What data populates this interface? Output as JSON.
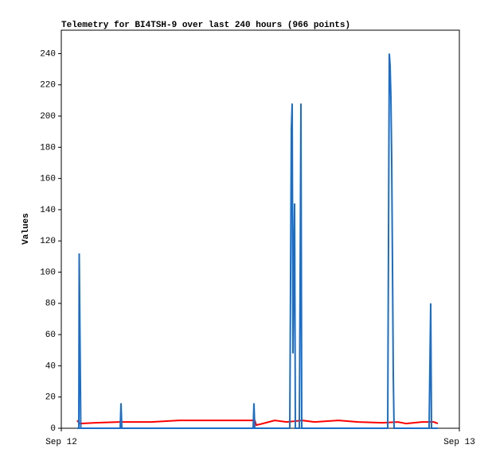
{
  "chart_data": {
    "type": "line",
    "title": "Telemetry for BI4TSH-9 over last 240 hours (966 points)",
    "ylabel": "Values",
    "xlim": [
      0,
      1
    ],
    "xticks": [
      {
        "value": 0,
        "label": "Sep 12"
      },
      {
        "value": 1,
        "label": "Sep 13"
      }
    ],
    "ylim": [
      0,
      255
    ],
    "yticks": [
      0,
      20,
      40,
      60,
      80,
      100,
      120,
      140,
      160,
      180,
      200,
      220,
      240
    ],
    "series": [
      {
        "color": "#ff0000",
        "x": [
          0.04,
          0.046,
          0.086,
          0.146,
          0.226,
          0.296,
          0.416,
          0.486,
          0.49,
          0.506,
          0.536,
          0.566,
          0.606,
          0.636,
          0.696,
          0.746,
          0.806,
          0.846,
          0.866,
          0.906,
          0.936,
          0.946
        ],
        "values": [
          5,
          3,
          3.5,
          4,
          4,
          5,
          5,
          5,
          2,
          3,
          5,
          4,
          5,
          4,
          5,
          4,
          3.5,
          4,
          3,
          4,
          4,
          3
        ]
      },
      {
        "color": "#1a6ec8",
        "x": [
          0.04,
          0.044,
          0.045,
          0.046,
          0.048,
          0.049,
          0.148,
          0.15,
          0.152,
          0.482,
          0.484,
          0.486,
          0.574,
          0.576,
          0.578,
          0.58,
          0.582,
          0.584,
          0.586,
          0.588,
          0.598,
          0.6,
          0.602,
          0.604,
          0.82,
          0.822,
          0.824,
          0.826,
          0.828,
          0.83,
          0.832,
          0.834,
          0.836,
          0.924,
          0.926,
          0.928,
          0.93,
          0.946
        ],
        "values": [
          0,
          0,
          112,
          84,
          28,
          0,
          0,
          16,
          0,
          0,
          16,
          0,
          0,
          96,
          192,
          208,
          48,
          104,
          144,
          0,
          0,
          96,
          208,
          0,
          0,
          120,
          240,
          232,
          212,
          172,
          104,
          34,
          0,
          0,
          40,
          80,
          0,
          0
        ]
      }
    ]
  }
}
